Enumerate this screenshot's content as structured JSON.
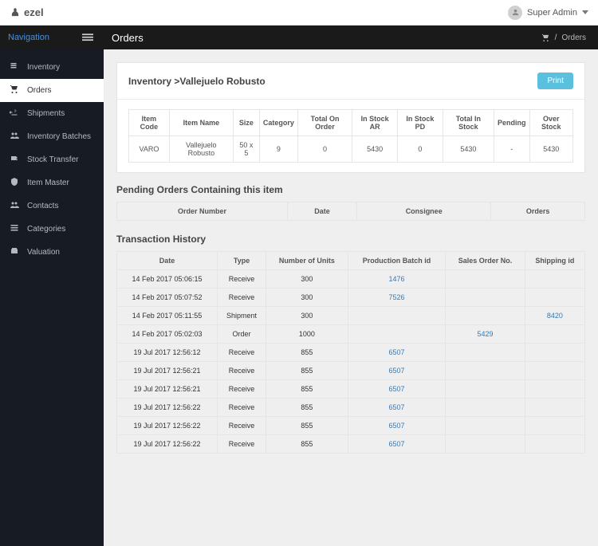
{
  "topbar": {
    "logo_text": "ezel",
    "user_label": "Super Admin"
  },
  "middlebar": {
    "nav_label": "Navigation",
    "page_title": "Orders",
    "bc_sep": "/",
    "bc_end": "Orders"
  },
  "sidebar": {
    "items": [
      {
        "label": "Inventory"
      },
      {
        "label": "Orders"
      },
      {
        "label": "Shipments"
      },
      {
        "label": "Inventory Batches"
      },
      {
        "label": "Stock Transfer"
      },
      {
        "label": "Item Master"
      },
      {
        "label": "Contacts"
      },
      {
        "label": "Categories"
      },
      {
        "label": "Valuation"
      }
    ],
    "active_index": 1
  },
  "inventory_panel": {
    "title": "Inventory >Vallejuelo Robusto",
    "print_label": "Print",
    "headers": [
      "Item Code",
      "Item Name",
      "Size",
      "Category",
      "Total On Order",
      "In Stock AR",
      "In Stock PD",
      "Total In Stock",
      "Pending",
      "Over Stock"
    ],
    "row": [
      "VARO",
      "Vallejuelo Robusto",
      "50 x 5",
      "9",
      "0",
      "5430",
      "0",
      "5430",
      "-",
      "5430"
    ]
  },
  "pending_section": {
    "title": "Pending Orders Containing this item",
    "headers": [
      "Order Number",
      "Date",
      "Consignee",
      "Orders"
    ]
  },
  "history": {
    "title": "Transaction History",
    "headers": [
      "Date",
      "Type",
      "Number of Units",
      "Production Batch id",
      "Sales Order No.",
      "Shipping id"
    ],
    "rows": [
      {
        "date": "14 Feb 2017 05:06:15",
        "type": "Receive",
        "units": "300",
        "pbatch": "1476",
        "sorder": "",
        "ship": ""
      },
      {
        "date": "14 Feb 2017 05:07:52",
        "type": "Receive",
        "units": "300",
        "pbatch": "7526",
        "sorder": "",
        "ship": ""
      },
      {
        "date": "14 Feb 2017 05:11:55",
        "type": "Shipment",
        "units": "300",
        "pbatch": "",
        "sorder": "",
        "ship": "8420"
      },
      {
        "date": "14 Feb 2017 05:02:03",
        "type": "Order",
        "units": "1000",
        "pbatch": "",
        "sorder": "5429",
        "ship": ""
      },
      {
        "date": "19 Jul 2017 12:56:12",
        "type": "Receive",
        "units": "855",
        "pbatch": "6507",
        "sorder": "",
        "ship": ""
      },
      {
        "date": "19 Jul 2017 12:56:21",
        "type": "Receive",
        "units": "855",
        "pbatch": "6507",
        "sorder": "",
        "ship": ""
      },
      {
        "date": "19 Jul 2017 12:56:21",
        "type": "Receive",
        "units": "855",
        "pbatch": "6507",
        "sorder": "",
        "ship": ""
      },
      {
        "date": "19 Jul 2017 12:56:22",
        "type": "Receive",
        "units": "855",
        "pbatch": "6507",
        "sorder": "",
        "ship": ""
      },
      {
        "date": "19 Jul 2017 12:56:22",
        "type": "Receive",
        "units": "855",
        "pbatch": "6507",
        "sorder": "",
        "ship": ""
      },
      {
        "date": "19 Jul 2017 12:56:22",
        "type": "Receive",
        "units": "855",
        "pbatch": "6507",
        "sorder": "",
        "ship": ""
      }
    ]
  },
  "colors": {
    "link": "#337ab7",
    "print_btn": "#5bc0de",
    "sidebar_bg": "#171c24",
    "bar_dark": "#1a1a1a"
  }
}
